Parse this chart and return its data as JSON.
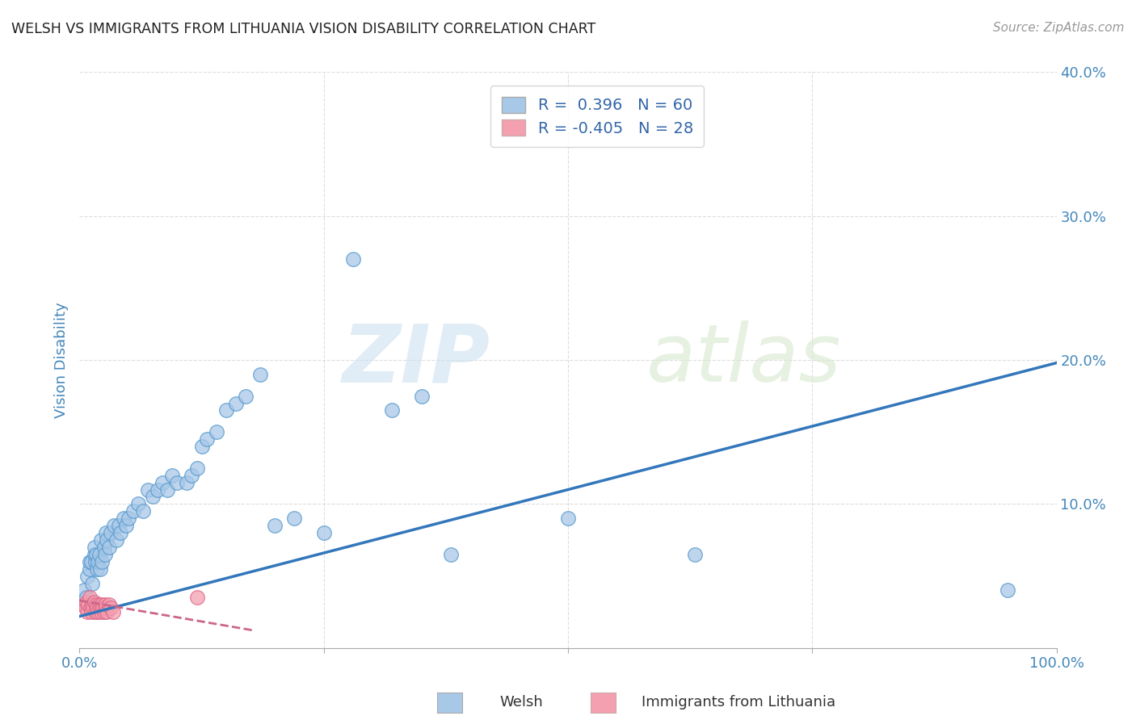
{
  "title": "WELSH VS IMMIGRANTS FROM LITHUANIA VISION DISABILITY CORRELATION CHART",
  "source": "Source: ZipAtlas.com",
  "ylabel": "Vision Disability",
  "xlim": [
    0,
    1.0
  ],
  "ylim": [
    0,
    0.4
  ],
  "blue_color": "#a8c8e8",
  "blue_edge_color": "#5599cc",
  "blue_line_color": "#3377bb",
  "pink_color": "#f4a0b0",
  "pink_edge_color": "#dd6688",
  "pink_line_color": "#cc6688",
  "r_blue": 0.396,
  "n_blue": 60,
  "r_pink": -0.405,
  "n_pink": 28,
  "watermark_zip": "ZIP",
  "watermark_atlas": "atlas",
  "legend_label_blue": "Welsh",
  "legend_label_pink": "Immigrants from Lithuania",
  "blue_scatter_x": [
    0.005,
    0.007,
    0.008,
    0.01,
    0.01,
    0.012,
    0.013,
    0.015,
    0.015,
    0.016,
    0.017,
    0.018,
    0.019,
    0.02,
    0.021,
    0.022,
    0.023,
    0.025,
    0.026,
    0.027,
    0.028,
    0.03,
    0.032,
    0.035,
    0.038,
    0.04,
    0.042,
    0.045,
    0.048,
    0.05,
    0.055,
    0.06,
    0.065,
    0.07,
    0.075,
    0.08,
    0.085,
    0.09,
    0.095,
    0.1,
    0.11,
    0.115,
    0.12,
    0.125,
    0.13,
    0.14,
    0.15,
    0.16,
    0.17,
    0.185,
    0.2,
    0.22,
    0.25,
    0.28,
    0.32,
    0.35,
    0.38,
    0.5,
    0.63,
    0.95
  ],
  "blue_scatter_y": [
    0.04,
    0.035,
    0.05,
    0.055,
    0.06,
    0.06,
    0.045,
    0.065,
    0.07,
    0.06,
    0.065,
    0.055,
    0.06,
    0.065,
    0.055,
    0.075,
    0.06,
    0.07,
    0.065,
    0.08,
    0.075,
    0.07,
    0.08,
    0.085,
    0.075,
    0.085,
    0.08,
    0.09,
    0.085,
    0.09,
    0.095,
    0.1,
    0.095,
    0.11,
    0.105,
    0.11,
    0.115,
    0.11,
    0.12,
    0.115,
    0.115,
    0.12,
    0.125,
    0.14,
    0.145,
    0.15,
    0.165,
    0.17,
    0.175,
    0.19,
    0.085,
    0.09,
    0.08,
    0.27,
    0.165,
    0.175,
    0.065,
    0.09,
    0.065,
    0.04
  ],
  "pink_scatter_x": [
    0.005,
    0.006,
    0.007,
    0.008,
    0.009,
    0.01,
    0.011,
    0.012,
    0.013,
    0.014,
    0.015,
    0.016,
    0.017,
    0.018,
    0.019,
    0.02,
    0.021,
    0.022,
    0.023,
    0.024,
    0.025,
    0.026,
    0.027,
    0.028,
    0.03,
    0.032,
    0.034,
    0.12
  ],
  "pink_scatter_y": [
    0.03,
    0.028,
    0.032,
    0.025,
    0.03,
    0.035,
    0.028,
    0.025,
    0.03,
    0.028,
    0.032,
    0.025,
    0.03,
    0.028,
    0.025,
    0.03,
    0.028,
    0.025,
    0.03,
    0.028,
    0.025,
    0.03,
    0.028,
    0.025,
    0.03,
    0.028,
    0.025,
    0.035
  ],
  "blue_line_x0": 0.0,
  "blue_line_y0": 0.022,
  "blue_line_x1": 1.0,
  "blue_line_y1": 0.198,
  "pink_line_x0": 0.0,
  "pink_line_y0": 0.033,
  "pink_line_x1": 0.18,
  "pink_line_y1": 0.012
}
